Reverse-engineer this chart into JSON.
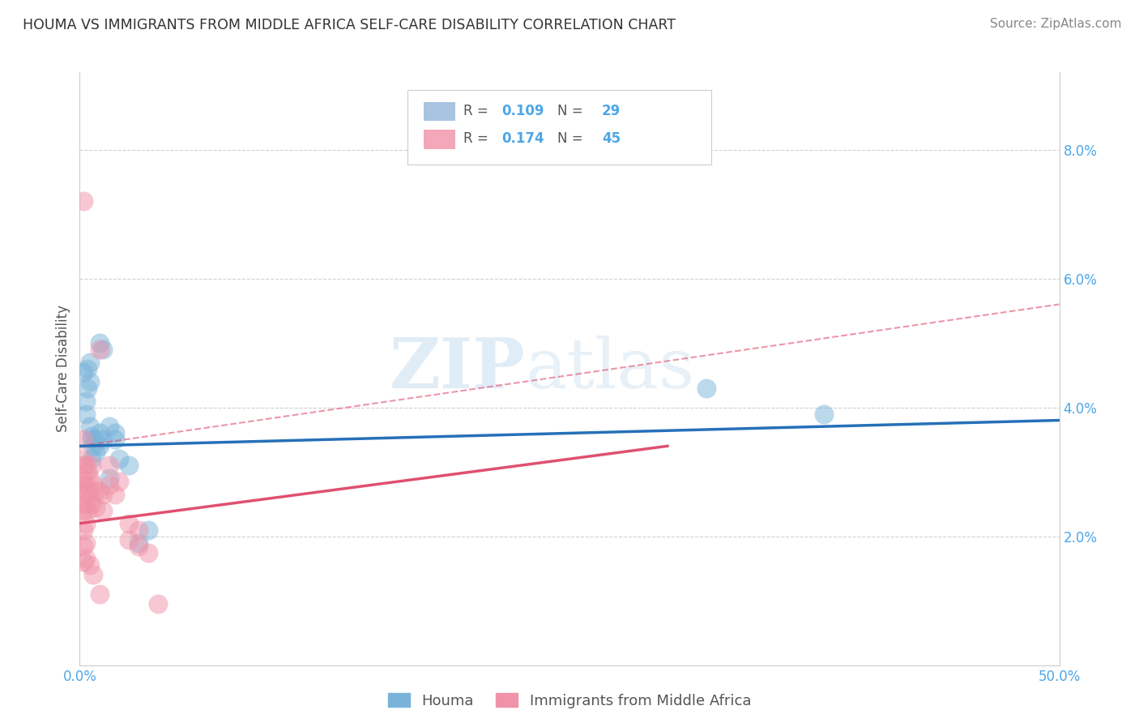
{
  "title": "HOUMA VS IMMIGRANTS FROM MIDDLE AFRICA SELF-CARE DISABILITY CORRELATION CHART",
  "source": "Source: ZipAtlas.com",
  "ylabel": "Self-Care Disability",
  "xlim": [
    0.0,
    0.5
  ],
  "ylim": [
    0.0,
    0.092
  ],
  "xticks": [
    0.0,
    0.5
  ],
  "xticklabels": [
    "0.0%",
    "50.0%"
  ],
  "yticks_right": [
    0.02,
    0.04,
    0.06,
    0.08
  ],
  "yticklabels_right": [
    "2.0%",
    "4.0%",
    "6.0%",
    "8.0%"
  ],
  "legend_entries": [
    {
      "r_val": "0.109",
      "n_val": "29",
      "color": "#a8c4e0"
    },
    {
      "r_val": "0.174",
      "n_val": "45",
      "color": "#f4a7b9"
    }
  ],
  "legend_bottom": [
    "Houma",
    "Immigrants from Middle Africa"
  ],
  "houma_color": "#7ab3d9",
  "immigrants_color": "#f093a8",
  "houma_scatter": [
    [
      0.002,
      0.0455
    ],
    [
      0.004,
      0.043
    ],
    [
      0.003,
      0.039
    ],
    [
      0.005,
      0.047
    ],
    [
      0.004,
      0.046
    ],
    [
      0.003,
      0.041
    ],
    [
      0.005,
      0.037
    ],
    [
      0.006,
      0.0355
    ],
    [
      0.007,
      0.034
    ],
    [
      0.008,
      0.035
    ],
    [
      0.008,
      0.033
    ],
    [
      0.006,
      0.032
    ],
    [
      0.01,
      0.036
    ],
    [
      0.01,
      0.034
    ],
    [
      0.012,
      0.035
    ],
    [
      0.015,
      0.037
    ],
    [
      0.015,
      0.029
    ],
    [
      0.018,
      0.035
    ],
    [
      0.02,
      0.032
    ],
    [
      0.025,
      0.031
    ],
    [
      0.01,
      0.05
    ],
    [
      0.012,
      0.049
    ],
    [
      0.018,
      0.036
    ],
    [
      0.005,
      0.044
    ],
    [
      0.006,
      0.035
    ],
    [
      0.03,
      0.019
    ],
    [
      0.035,
      0.021
    ],
    [
      0.32,
      0.043
    ],
    [
      0.38,
      0.039
    ]
  ],
  "immigrants_scatter": [
    [
      0.001,
      0.032
    ],
    [
      0.001,
      0.029
    ],
    [
      0.001,
      0.027
    ],
    [
      0.001,
      0.025
    ],
    [
      0.002,
      0.035
    ],
    [
      0.002,
      0.031
    ],
    [
      0.002,
      0.028
    ],
    [
      0.002,
      0.024
    ],
    [
      0.002,
      0.021
    ],
    [
      0.002,
      0.0185
    ],
    [
      0.002,
      0.016
    ],
    [
      0.003,
      0.031
    ],
    [
      0.003,
      0.028
    ],
    [
      0.003,
      0.025
    ],
    [
      0.003,
      0.022
    ],
    [
      0.003,
      0.019
    ],
    [
      0.004,
      0.03
    ],
    [
      0.004,
      0.027
    ],
    [
      0.004,
      0.024
    ],
    [
      0.005,
      0.029
    ],
    [
      0.005,
      0.026
    ],
    [
      0.006,
      0.031
    ],
    [
      0.006,
      0.025
    ],
    [
      0.007,
      0.028
    ],
    [
      0.008,
      0.027
    ],
    [
      0.008,
      0.0245
    ],
    [
      0.01,
      0.049
    ],
    [
      0.01,
      0.027
    ],
    [
      0.012,
      0.0265
    ],
    [
      0.012,
      0.024
    ],
    [
      0.015,
      0.031
    ],
    [
      0.015,
      0.028
    ],
    [
      0.018,
      0.0265
    ],
    [
      0.02,
      0.0285
    ],
    [
      0.025,
      0.0195
    ],
    [
      0.025,
      0.022
    ],
    [
      0.03,
      0.021
    ],
    [
      0.03,
      0.0185
    ],
    [
      0.035,
      0.0175
    ],
    [
      0.002,
      0.072
    ],
    [
      0.003,
      0.0165
    ],
    [
      0.005,
      0.0155
    ],
    [
      0.007,
      0.014
    ],
    [
      0.01,
      0.011
    ],
    [
      0.04,
      0.0095
    ]
  ],
  "houma_line": {
    "x0": 0.0,
    "y0": 0.034,
    "x1": 0.5,
    "y1": 0.038
  },
  "immigrants_line_solid": {
    "x0": 0.0,
    "y0": 0.022,
    "x1": 0.3,
    "y1": 0.034
  },
  "immigrants_line_dashed": {
    "x0": 0.0,
    "y0": 0.034,
    "x1": 0.5,
    "y1": 0.056
  },
  "watermark_zip": "ZIP",
  "watermark_atlas": "atlas",
  "background_color": "#ffffff",
  "grid_color": "#d0d0d0",
  "title_color": "#333333",
  "axis_label_color": "#555555",
  "tick_color": "#4da6e8"
}
